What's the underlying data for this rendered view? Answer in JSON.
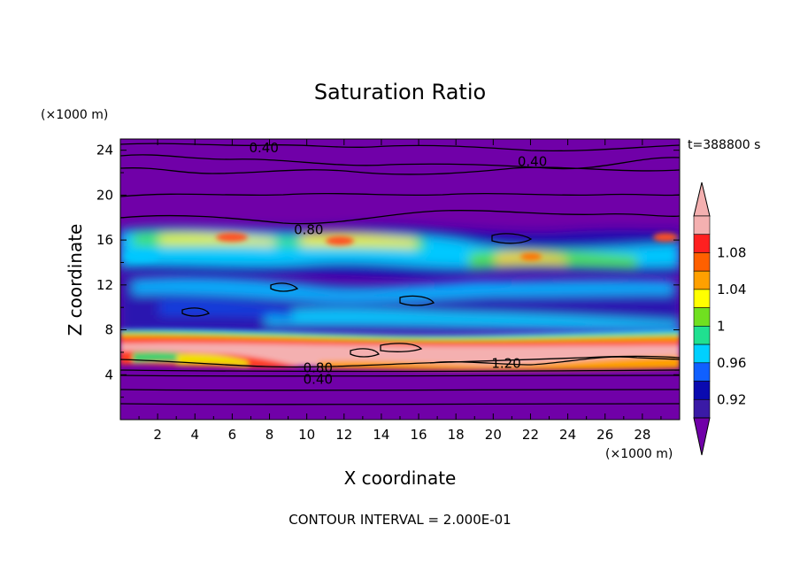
{
  "chart_data": {
    "type": "heatmap",
    "title": "Saturation Ratio",
    "xlabel": "X coordinate",
    "ylabel": "Z coordinate",
    "x_unit": "(×1000 m)",
    "y_unit": "(×1000 m)",
    "time_label": "t=388800 s",
    "footer": "CONTOUR INTERVAL = 2.000E-01",
    "xlim": [
      0,
      30
    ],
    "ylim": [
      0,
      25
    ],
    "x_ticks": [
      "2",
      "4",
      "6",
      "8",
      "10",
      "12",
      "14",
      "16",
      "18",
      "20",
      "22",
      "24",
      "26",
      "28"
    ],
    "y_ticks": [
      "4",
      "8",
      "12",
      "16",
      "20",
      "24"
    ],
    "colorbar": {
      "levels": [
        0.92,
        0.94,
        0.96,
        0.98,
        1.0,
        1.02,
        1.04,
        1.06,
        1.08,
        1.1
      ],
      "labels": [
        "0.92",
        "0.96",
        "1",
        "1.04",
        "1.08"
      ],
      "colors": [
        "#3a1aa6",
        "#0a0ab0",
        "#1060ff",
        "#00d0ff",
        "#20e090",
        "#70e020",
        "#ffff00",
        "#ffa000",
        "#ff6000",
        "#ff2020",
        "#f4b0b0"
      ],
      "under_color": "#7000a8",
      "over_color": "#f4b0b0"
    },
    "contour_labels": [
      {
        "text": "0.40",
        "x": 7.7,
        "z": 24.2
      },
      {
        "text": "0.40",
        "x": 22.1,
        "z": 23.0
      },
      {
        "text": "0.80",
        "x": 10.1,
        "z": 16.9
      },
      {
        "text": "1.20",
        "x": 20.7,
        "z": 5.0
      },
      {
        "text": "0.80",
        "x": 10.6,
        "z": 4.6
      },
      {
        "text": "0.40",
        "x": 10.6,
        "z": 3.6
      }
    ]
  }
}
